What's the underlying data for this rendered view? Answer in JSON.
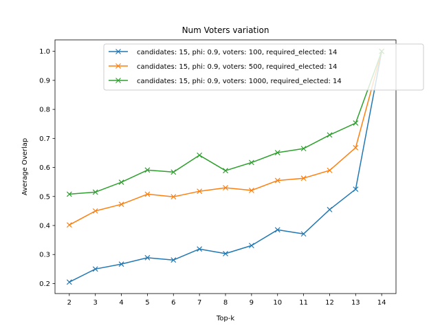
{
  "chart_data": {
    "type": "line",
    "title": "Num Voters variation",
    "xlabel": "Top-k",
    "ylabel": "Average Overlap",
    "x": [
      2,
      3,
      4,
      5,
      6,
      7,
      8,
      9,
      10,
      11,
      12,
      13,
      14
    ],
    "xticks": [
      "2",
      "3",
      "4",
      "5",
      "6",
      "7",
      "8",
      "9",
      "10",
      "11",
      "12",
      "13",
      "14"
    ],
    "yticks": [
      "0.2",
      "0.3",
      "0.4",
      "0.5",
      "0.6",
      "0.7",
      "0.8",
      "0.9",
      "1.0"
    ],
    "xlim": [
      1.45,
      14.55
    ],
    "ylim": [
      0.1655,
      1.0395
    ],
    "marker": "x",
    "grid": false,
    "legend_position": "upper right",
    "series": [
      {
        "name": "candidates: 15, phi: 0.9, voters: 100, required_elected: 14",
        "color": "#1f77b4",
        "values": [
          0.205,
          0.25,
          0.267,
          0.289,
          0.281,
          0.319,
          0.303,
          0.331,
          0.385,
          0.371,
          0.455,
          0.525,
          1.0
        ]
      },
      {
        "name": "candidates: 15, phi: 0.9, voters: 500, required_elected: 14",
        "color": "#ff7f0e",
        "values": [
          0.402,
          0.45,
          0.473,
          0.508,
          0.499,
          0.518,
          0.53,
          0.521,
          0.555,
          0.563,
          0.59,
          0.668,
          1.0
        ]
      },
      {
        "name": "candidates: 15, phi: 0.9, voters: 1000, required_elected: 14",
        "color": "#2ca02c",
        "values": [
          0.508,
          0.515,
          0.549,
          0.591,
          0.584,
          0.642,
          0.589,
          0.617,
          0.651,
          0.665,
          0.712,
          0.753,
          1.0
        ]
      }
    ]
  }
}
